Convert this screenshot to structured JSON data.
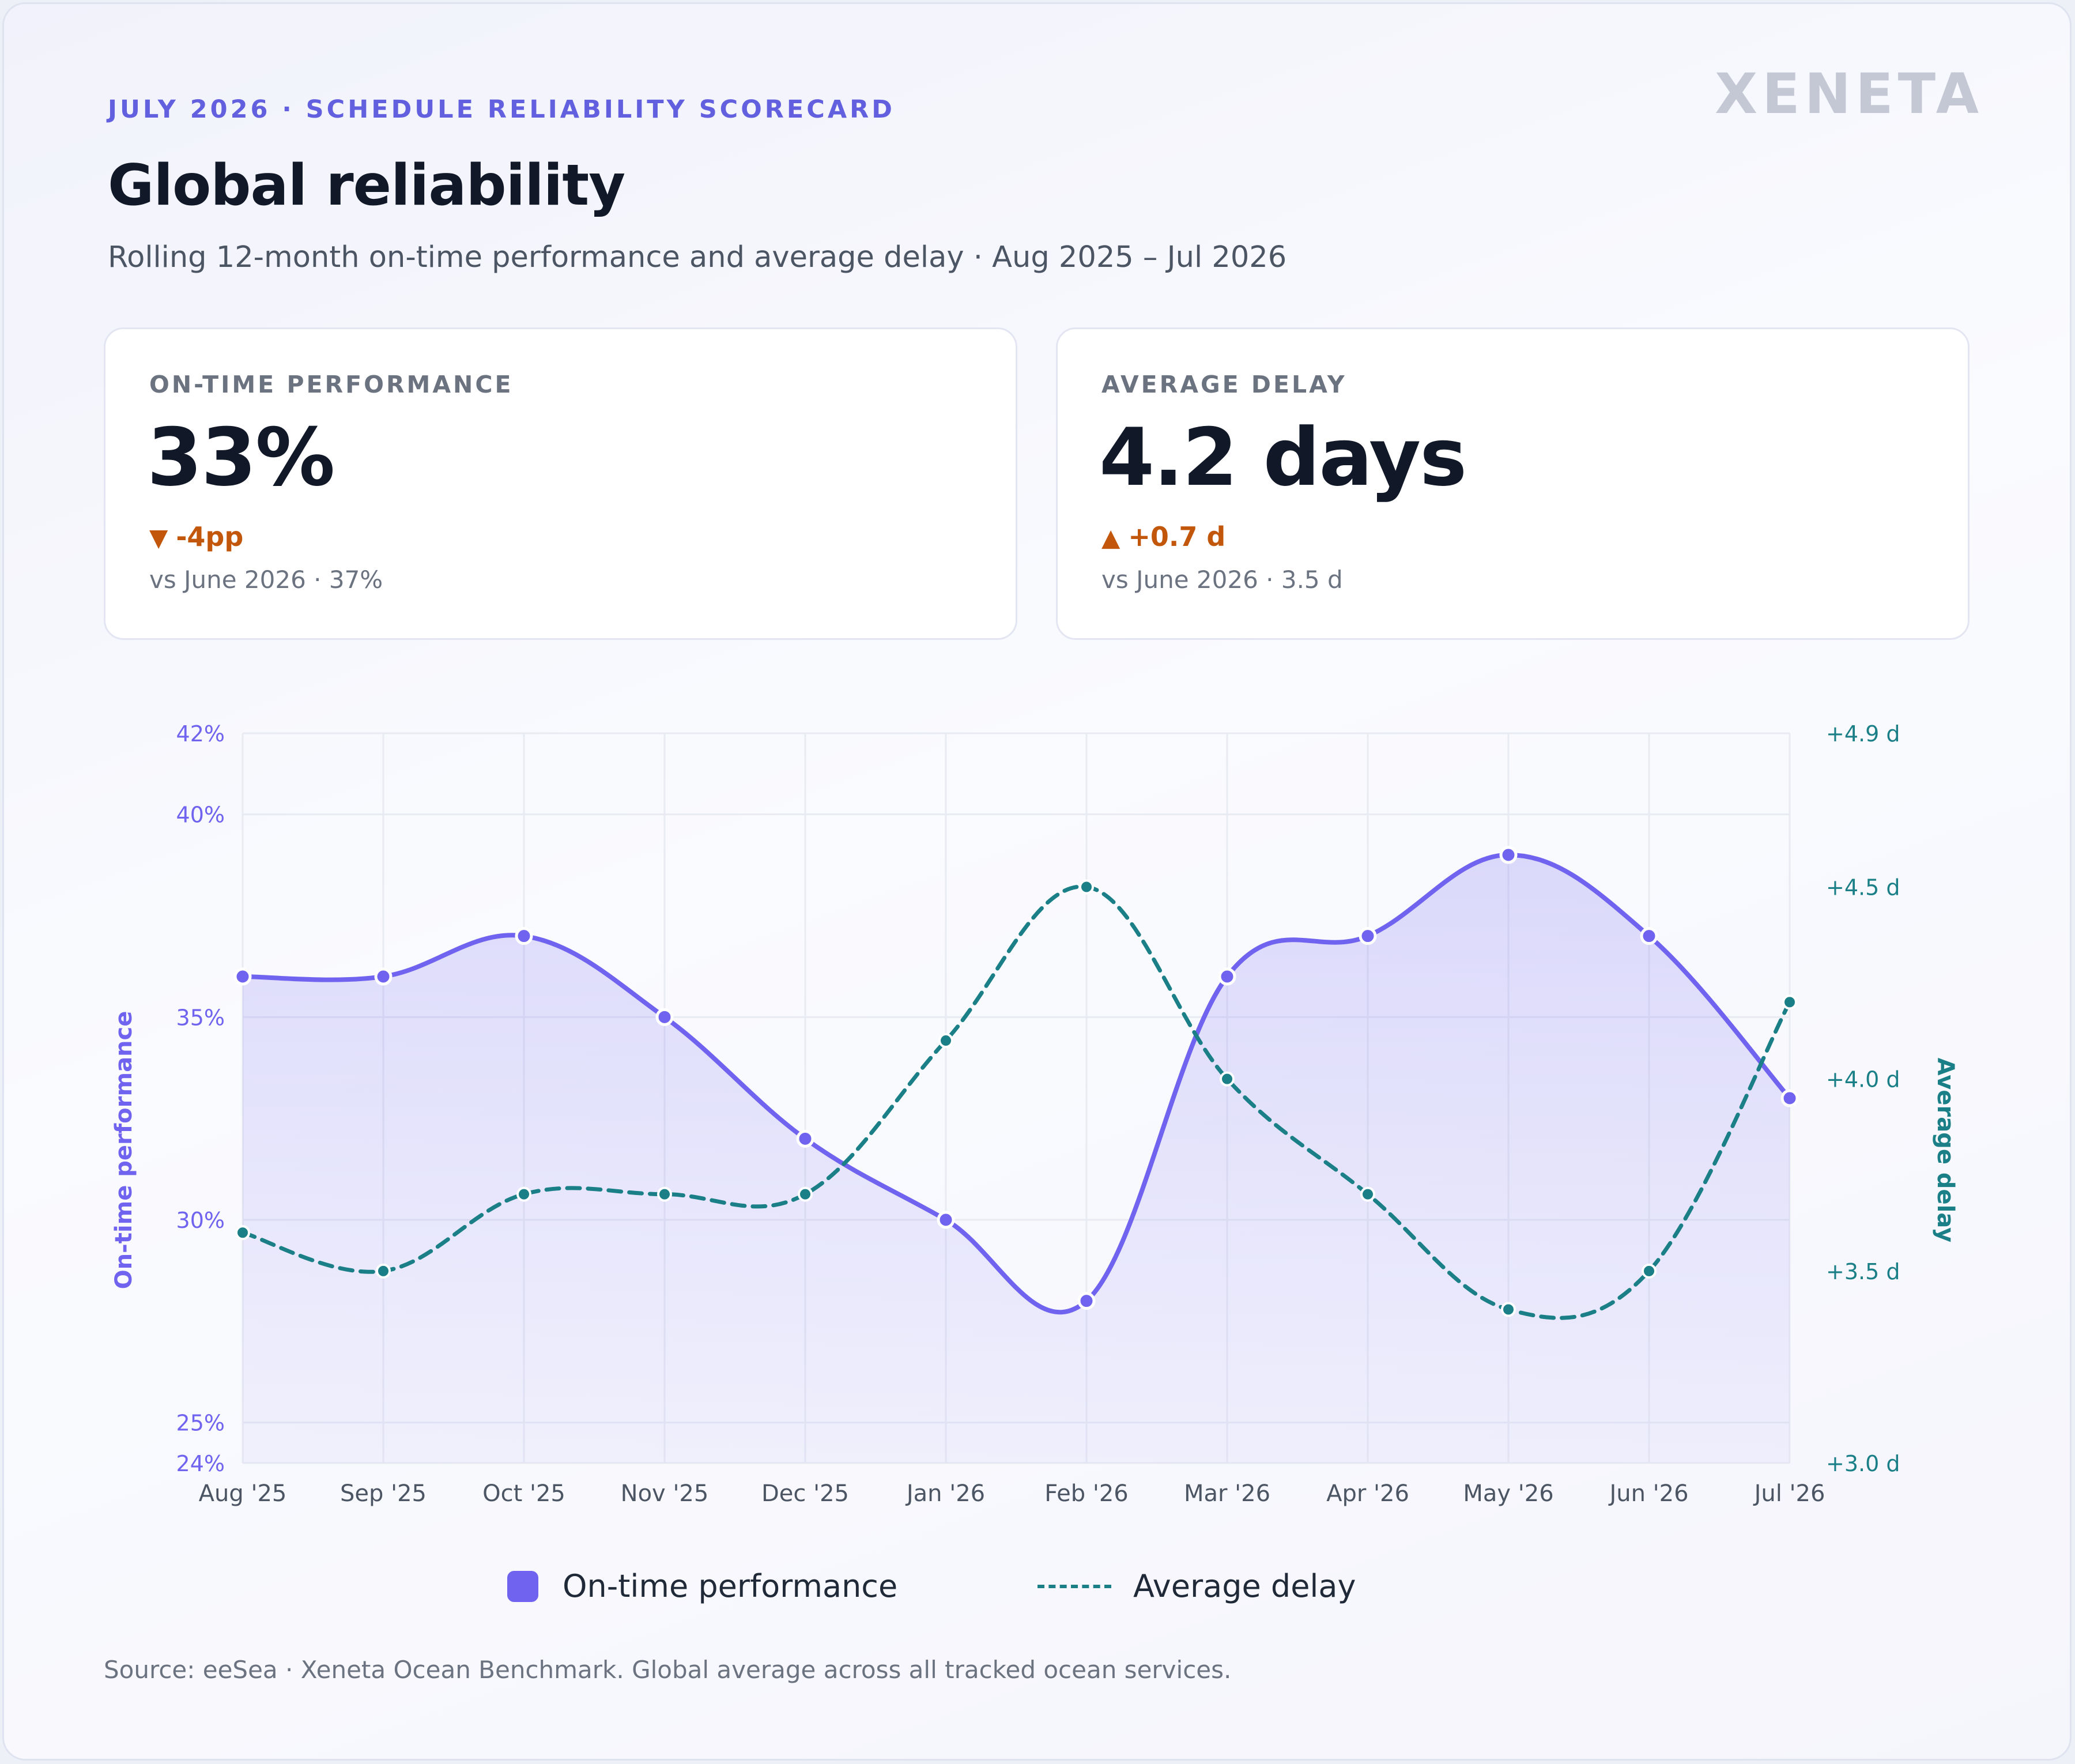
{
  "header": {
    "eyebrow": "JULY 2026 · SCHEDULE RELIABILITY SCORECARD",
    "brand": "XENETA",
    "title": "Global reliability",
    "subtitle": "Rolling 12-month on-time performance and average delay · Aug 2025 – Jul 2026"
  },
  "kpis": {
    "otp": {
      "label": "ON-TIME PERFORMANCE",
      "value": "33%",
      "direction_icon": "triangle-down-icon",
      "delta": "-4pp",
      "comparison": "vs June 2026 · 37%"
    },
    "delay": {
      "label": "AVERAGE DELAY",
      "value": "4.2 days",
      "direction_icon": "triangle-up-icon",
      "delta": "+0.7 d",
      "comparison": "vs June 2026 · 3.5 d"
    }
  },
  "colors": {
    "otp": "#7063ef",
    "delay": "#1a7f86",
    "delta_negative": "#c2570c"
  },
  "chart_data": {
    "type": "line",
    "categories": [
      "Aug '25",
      "Sep '25",
      "Oct '25",
      "Nov '25",
      "Dec '25",
      "Jan '26",
      "Feb '26",
      "Mar '26",
      "Apr '26",
      "May '26",
      "Jun '26",
      "Jul '26"
    ],
    "series": [
      {
        "name": "On-time performance",
        "axis": "left",
        "style": "solid line with area fill",
        "values": [
          36,
          36,
          37,
          35,
          32,
          30,
          28,
          36,
          37,
          39,
          37,
          33
        ]
      },
      {
        "name": "Average delay",
        "axis": "right",
        "style": "dashed line",
        "values": [
          3.6,
          3.5,
          3.7,
          3.7,
          3.7,
          4.1,
          4.5,
          4.0,
          3.7,
          3.4,
          3.5,
          4.2
        ]
      }
    ],
    "y_left": {
      "label": "On-time performance",
      "range": [
        24,
        42
      ],
      "ticks": [
        24,
        25,
        30,
        35,
        40,
        42
      ],
      "tick_labels": [
        "24%",
        "25%",
        "30%",
        "35%",
        "40%",
        "42%"
      ]
    },
    "y_right": {
      "label": "Average delay",
      "range": [
        3.0,
        4.9
      ],
      "ticks": [
        3.0,
        3.5,
        4.0,
        4.5,
        4.9
      ],
      "tick_labels": [
        "+3.0 d",
        "+3.5 d",
        "+4.0 d",
        "+4.5 d",
        "+4.9 d"
      ]
    },
    "grid": true,
    "legend": "bottom-center"
  },
  "legend": {
    "otp_label": "On-time performance",
    "delay_label": "Average delay"
  },
  "footer": {
    "source": "Source: eeSea · Xeneta Ocean Benchmark. Global average across all tracked ocean services."
  }
}
